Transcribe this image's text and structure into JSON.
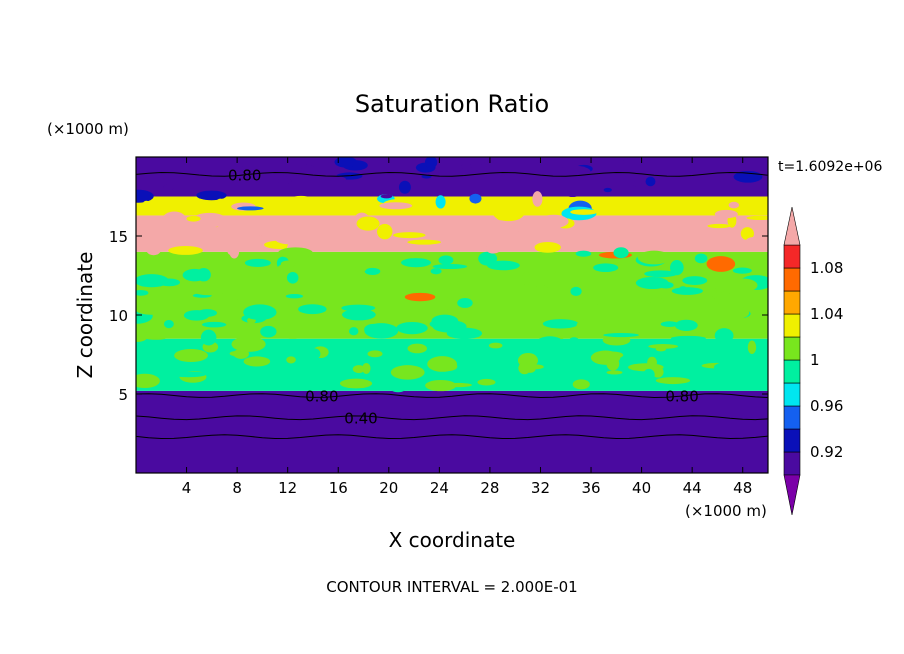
{
  "chart_data": {
    "type": "heatmap",
    "title": "Saturation Ratio",
    "time_label": "t=1.6092e+06",
    "xlabel": "X coordinate",
    "ylabel": "Z coordinate",
    "x_unit": "(×1000 m)",
    "y_unit": "(×1000 m)",
    "x_range": [
      0,
      50
    ],
    "y_range": [
      0,
      20
    ],
    "x_ticks": [
      4,
      8,
      12,
      16,
      20,
      24,
      28,
      32,
      36,
      40,
      44,
      48
    ],
    "y_ticks": [
      5,
      10,
      15
    ],
    "footer": "CONTOUR INTERVAL = 2.000E-01",
    "colorbar": {
      "levels": [
        0.9,
        0.92,
        0.94,
        0.96,
        0.98,
        1.0,
        1.02,
        1.04,
        1.06,
        1.08,
        1.1
      ],
      "tick_labels": [
        "0.92",
        "0.96",
        "1",
        "1.04",
        "1.08"
      ],
      "tick_values": [
        0.92,
        0.96,
        1.0,
        1.04,
        1.08
      ],
      "colors": [
        "#7b00a8",
        "#4a0aa0",
        "#0a10b8",
        "#1460f0",
        "#00e6f0",
        "#00f0a0",
        "#78e61e",
        "#f0f000",
        "#ffa800",
        "#ff6a00",
        "#f42828",
        "#f4a8a8"
      ]
    },
    "layers": [
      {
        "z": [
          0,
          5.2
        ],
        "value": 0.9
      },
      {
        "z": [
          5.2,
          8.5
        ],
        "value": 0.99
      },
      {
        "z": [
          8.5,
          14.0
        ],
        "value": 1.0
      },
      {
        "z": [
          14.0,
          16.3
        ],
        "value": 1.11
      },
      {
        "z": [
          16.3,
          17.5
        ],
        "value": 1.02
      },
      {
        "z": [
          17.5,
          20.0
        ],
        "value": 0.9
      }
    ],
    "contour_labels": [
      {
        "text": "0.80",
        "x": 8.6,
        "z": 18.9
      },
      {
        "text": "0.80",
        "x": 14.7,
        "z": 4.9
      },
      {
        "text": "0.40",
        "x": 17.8,
        "z": 3.5
      },
      {
        "text": "0.80",
        "x": 43.2,
        "z": 4.9
      }
    ]
  }
}
